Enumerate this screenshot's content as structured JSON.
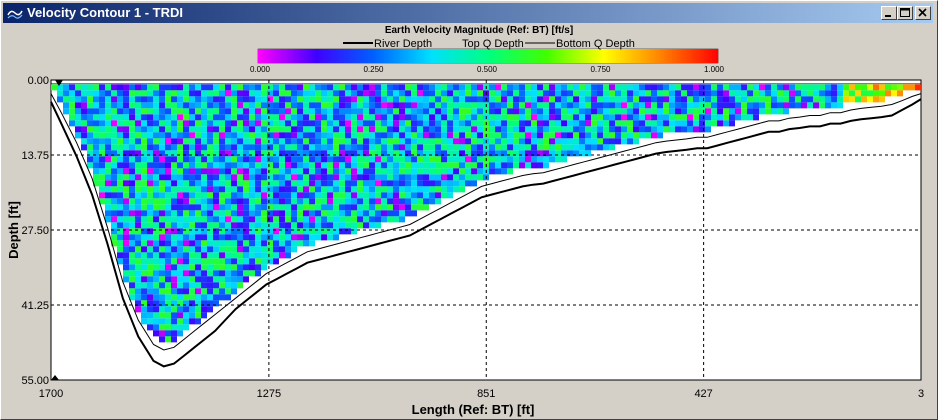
{
  "window": {
    "title": "Velocity Contour 1 - TRDI",
    "controls": [
      "minimize-icon",
      "maximize-icon",
      "close-icon"
    ]
  },
  "chart_data": {
    "type": "heatmap",
    "title": "Earth Velocity Magnitude (Ref: BT) [ft/s]",
    "xlabel": "Length (Ref: BT) [ft]",
    "ylabel": "Depth [ft]",
    "x_ticks": [
      "1700",
      "1275",
      "851",
      "427",
      "3"
    ],
    "y_ticks": [
      "0.00",
      "13.75",
      "27.50",
      "41.25",
      "55.00"
    ],
    "xlim": [
      1700,
      3
    ],
    "ylim": [
      0,
      55
    ],
    "grid": true,
    "colorbar": {
      "ticks": [
        "0.000",
        "0.250",
        "0.500",
        "0.750",
        "1.000"
      ],
      "range": [
        0,
        1
      ],
      "colors": [
        "#ff00ff",
        "#4000ff",
        "#0060ff",
        "#00e0ff",
        "#00ff80",
        "#40ff00",
        "#ffff00",
        "#ff8000",
        "#ff0000"
      ]
    },
    "legend": {
      "placement": "top",
      "items": [
        "River Depth",
        "Top Q Depth",
        "Bottom Q Depth"
      ]
    },
    "river_depth": {
      "x": [
        1700,
        1680,
        1650,
        1620,
        1590,
        1560,
        1530,
        1500,
        1480,
        1460,
        1440,
        1420,
        1400,
        1380,
        1360,
        1340,
        1320,
        1300,
        1280,
        1260,
        1240,
        1220,
        1200,
        1180,
        1160,
        1140,
        1120,
        1100,
        1080,
        1060,
        1040,
        1020,
        1000,
        980,
        960,
        940,
        920,
        900,
        880,
        860,
        840,
        820,
        800,
        780,
        760,
        740,
        720,
        700,
        680,
        660,
        640,
        620,
        600,
        580,
        560,
        540,
        520,
        500,
        480,
        460,
        440,
        420,
        400,
        380,
        360,
        340,
        320,
        300,
        280,
        260,
        240,
        220,
        200,
        180,
        160,
        140,
        120,
        100,
        80,
        60,
        40,
        20,
        3
      ],
      "y": [
        4.0,
        8.0,
        14.0,
        21.0,
        30.0,
        40.0,
        47.0,
        51.5,
        52.5,
        52.0,
        50.5,
        49.0,
        47.5,
        46.0,
        44.0,
        42.0,
        40.5,
        39.0,
        37.5,
        36.5,
        35.5,
        34.5,
        33.5,
        33.0,
        32.5,
        32.0,
        31.5,
        31.0,
        30.5,
        30.0,
        29.5,
        29.0,
        28.5,
        27.5,
        26.5,
        25.5,
        24.5,
        23.5,
        22.5,
        21.5,
        21.0,
        20.5,
        20.0,
        19.5,
        19.2,
        19.0,
        18.5,
        18.0,
        17.5,
        17.0,
        16.5,
        16.0,
        15.5,
        15.0,
        14.5,
        14.0,
        13.5,
        13.2,
        13.0,
        12.8,
        12.5,
        12.5,
        12.0,
        11.5,
        11.0,
        10.5,
        10.0,
        9.5,
        9.5,
        9.0,
        8.8,
        8.5,
        8.5,
        8.0,
        8.0,
        7.5,
        7.2,
        7.0,
        6.8,
        6.5,
        5.5,
        4.5,
        3.5
      ]
    },
    "bottom_q_depth": {
      "x": [
        1700,
        1680,
        1650,
        1620,
        1590,
        1560,
        1530,
        1500,
        1480,
        1460,
        1440,
        1420,
        1400,
        1380,
        1360,
        1340,
        1320,
        1300,
        1280,
        1260,
        1240,
        1220,
        1200,
        1180,
        1160,
        1140,
        1120,
        1100,
        1080,
        1060,
        1040,
        1020,
        1000,
        980,
        960,
        940,
        920,
        900,
        880,
        860,
        840,
        820,
        800,
        780,
        760,
        740,
        720,
        700,
        680,
        660,
        640,
        620,
        600,
        580,
        560,
        540,
        520,
        500,
        480,
        460,
        440,
        420,
        400,
        380,
        360,
        340,
        320,
        300,
        280,
        260,
        240,
        220,
        200,
        180,
        160,
        140,
        120,
        100,
        80,
        60,
        40,
        20,
        3
      ],
      "y": [
        2.5,
        6.0,
        11.5,
        18.0,
        27.0,
        37.0,
        44.0,
        48.5,
        49.5,
        49.0,
        47.5,
        46.0,
        44.5,
        43.0,
        41.5,
        40.0,
        38.5,
        37.0,
        35.5,
        34.5,
        33.5,
        32.5,
        31.5,
        31.0,
        30.5,
        30.0,
        29.5,
        29.0,
        28.5,
        28.0,
        27.5,
        27.0,
        26.5,
        25.5,
        24.5,
        23.5,
        22.5,
        21.5,
        20.5,
        19.5,
        19.0,
        18.5,
        18.0,
        17.5,
        17.2,
        17.0,
        16.5,
        16.0,
        15.5,
        15.0,
        14.5,
        14.0,
        13.5,
        13.0,
        12.5,
        12.0,
        11.5,
        11.2,
        11.0,
        10.8,
        10.5,
        10.5,
        10.0,
        9.5,
        9.0,
        8.5,
        8.0,
        7.5,
        7.5,
        7.0,
        6.8,
        6.5,
        6.5,
        6.0,
        6.0,
        5.5,
        5.2,
        5.0,
        4.8,
        4.5,
        3.8,
        3.0,
        2.5
      ]
    },
    "top_q_depth": {
      "y": 0.7
    },
    "measured_top_depth": 0.8,
    "velocity_summary": {
      "typical_range": [
        0.15,
        0.6
      ],
      "max_near_right_bank": 1.0,
      "bank_region_right_x": [
        150,
        3
      ]
    }
  }
}
